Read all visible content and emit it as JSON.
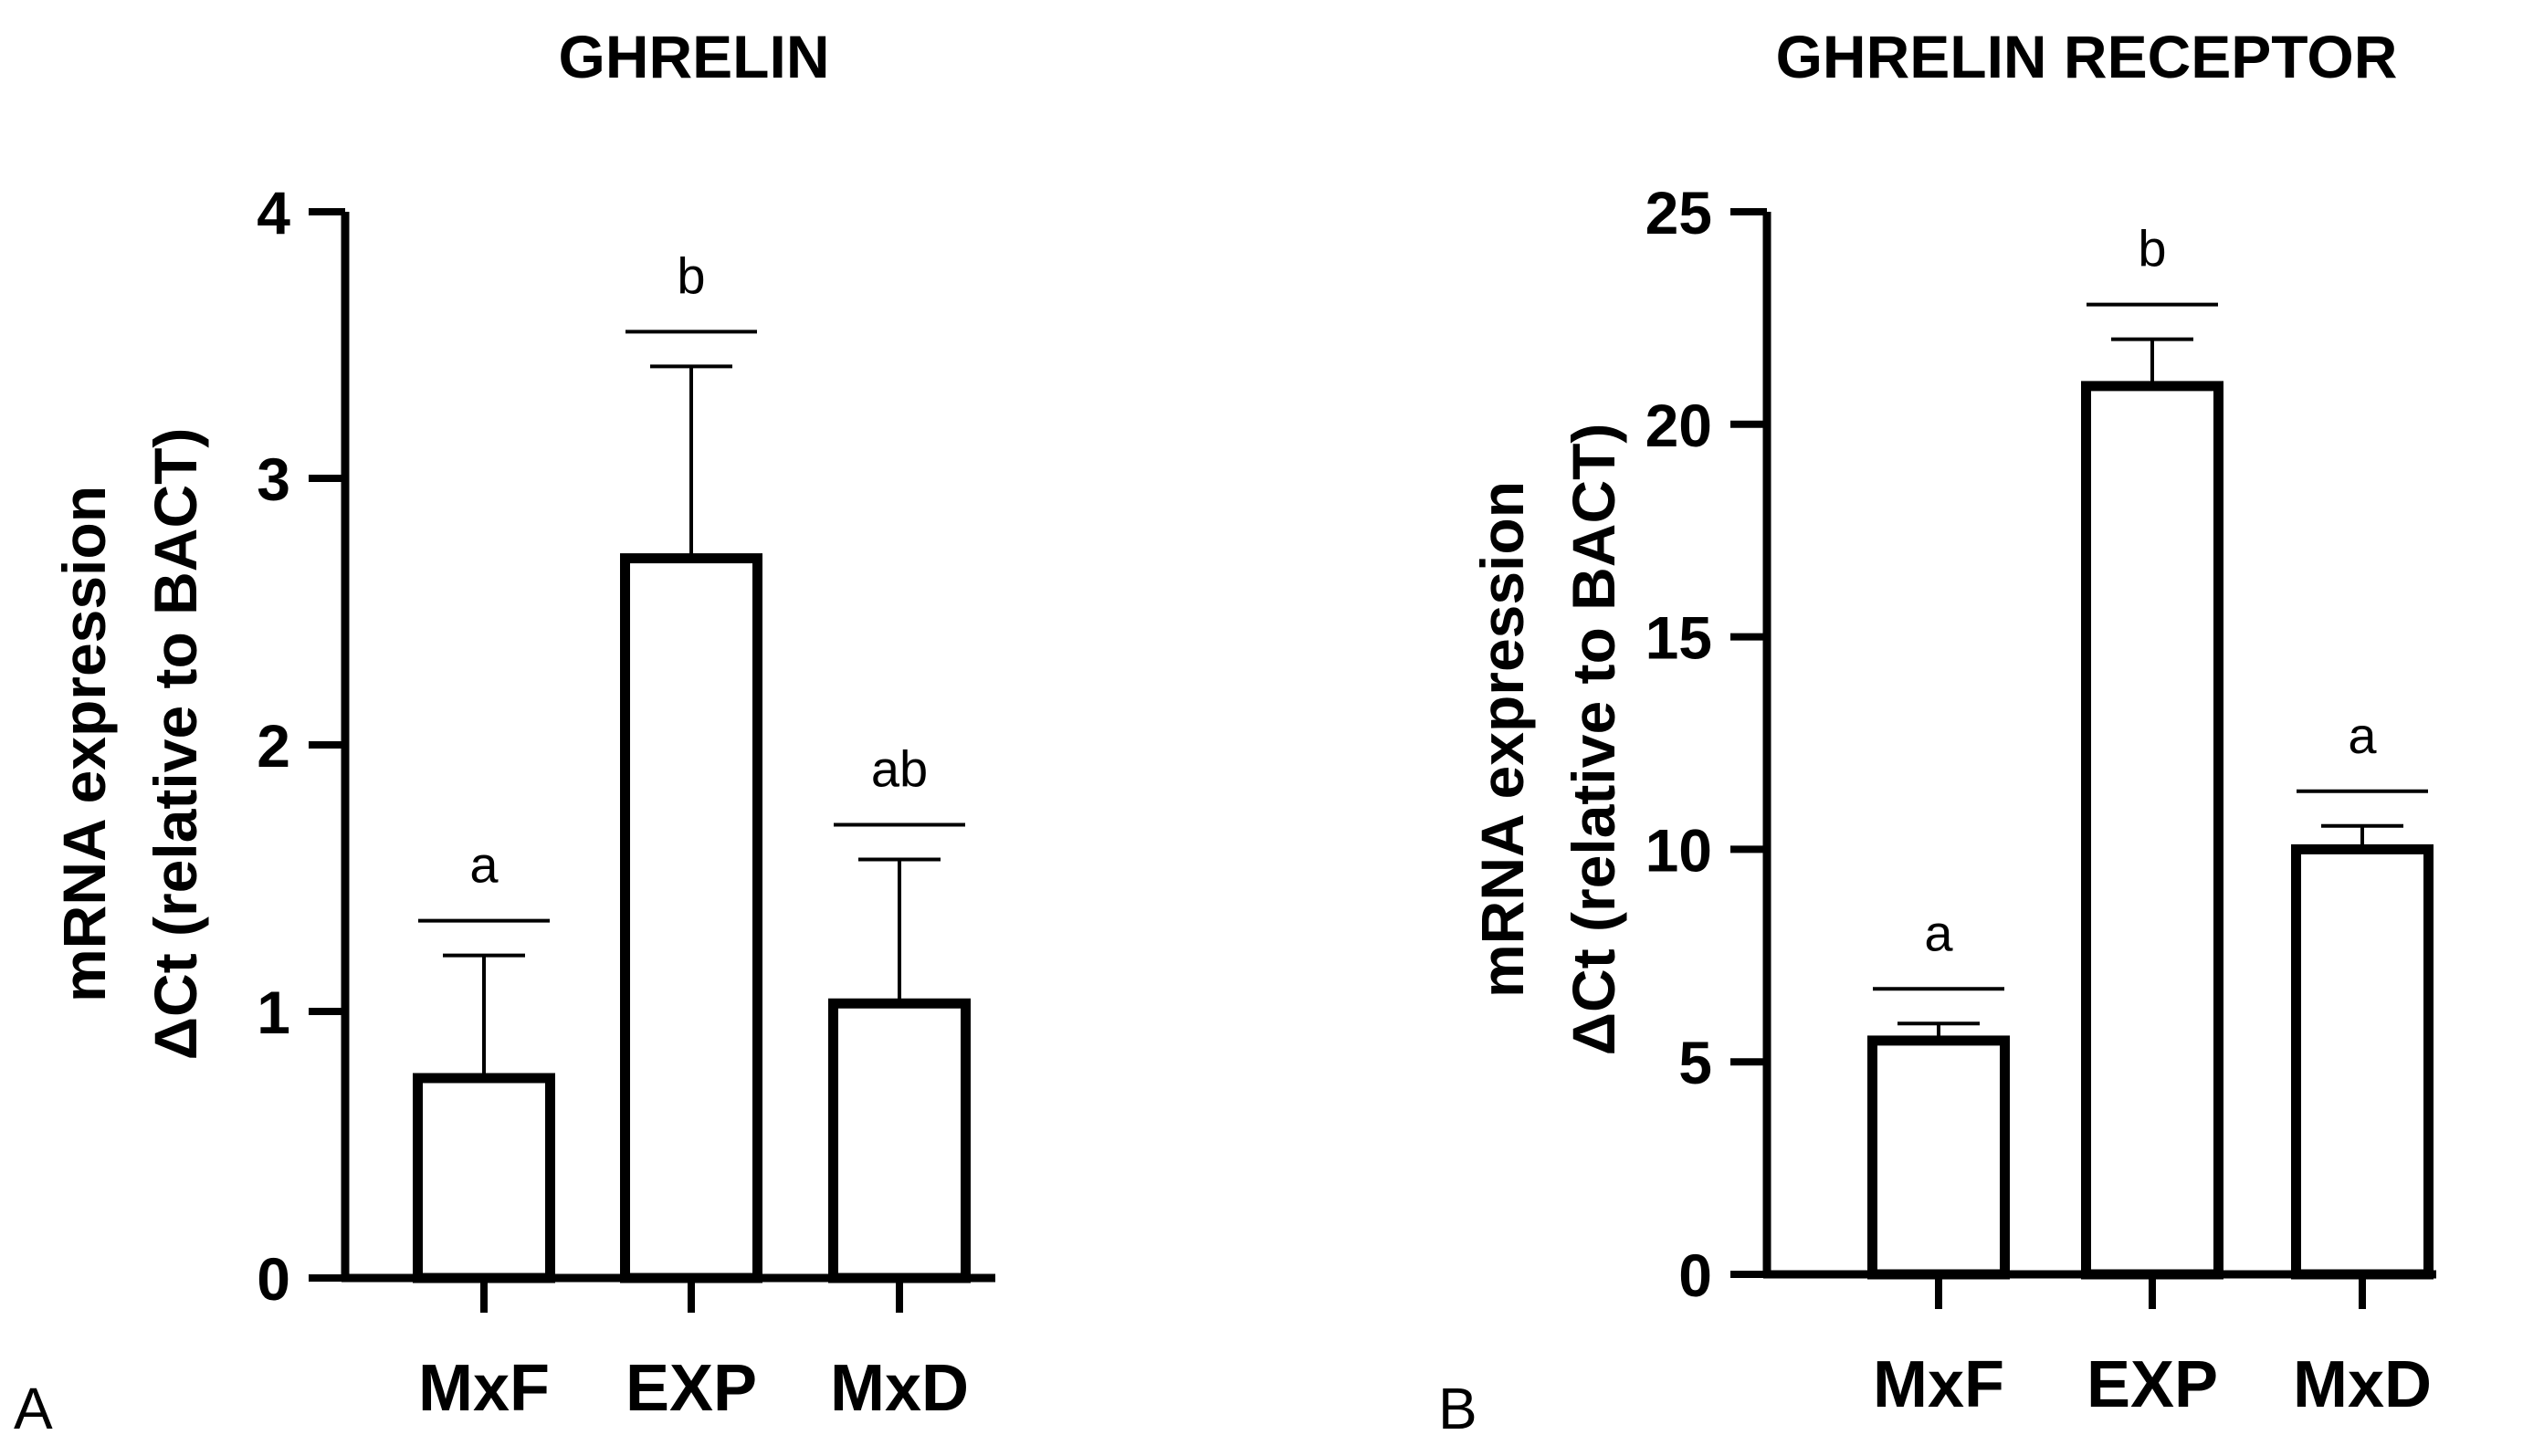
{
  "chart_data": [
    {
      "type": "bar",
      "panel": "A",
      "title": "GHRELIN",
      "ylabel_line1": "mRNA expression",
      "ylabel_line2": "ΔCt (relative to BACT)",
      "xlabel": "",
      "categories": [
        "MxF",
        "EXP",
        "MxD"
      ],
      "values": [
        0.75,
        2.7,
        1.03
      ],
      "errors": [
        0.46,
        0.72,
        0.54
      ],
      "significance": [
        "a",
        "b",
        "ab"
      ],
      "ylim": [
        0,
        4
      ],
      "yticks": [
        0,
        1,
        2,
        3,
        4
      ],
      "ytick_labels": [
        "0",
        "1",
        "2",
        "3",
        "4"
      ]
    },
    {
      "type": "bar",
      "panel": "B",
      "title": "GHRELIN RECEPTOR",
      "ylabel_line1": "mRNA expression",
      "ylabel_line2": "ΔCt (relative to BACT)",
      "xlabel": "",
      "categories": [
        "MxF",
        "EXP",
        "MxD"
      ],
      "values": [
        5.5,
        20.9,
        10.0
      ],
      "errors": [
        0.4,
        1.1,
        0.55
      ],
      "significance": [
        "a",
        "b",
        "a"
      ],
      "ylim": [
        0,
        25
      ],
      "yticks": [
        0,
        5,
        10,
        15,
        20,
        25
      ],
      "ytick_labels": [
        "0",
        "5",
        "10",
        "15",
        "20",
        "25"
      ]
    }
  ]
}
